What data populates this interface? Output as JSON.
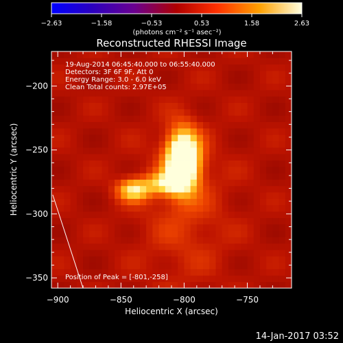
{
  "chart_data": {
    "type": "heatmap",
    "title": "Reconstructed RHESSI Image",
    "xlabel": "Heliocentric X (arcsec)",
    "ylabel": "Heliocentric Y (arcsec)",
    "xlim": [
      -905,
      -715
    ],
    "ylim": [
      -358,
      -173
    ],
    "x_ticks": [
      {
        "value": -900,
        "label": "−900"
      },
      {
        "value": -850,
        "label": "−850"
      },
      {
        "value": -800,
        "label": "−800"
      },
      {
        "value": -750,
        "label": "−750"
      }
    ],
    "y_ticks": [
      {
        "value": -200,
        "label": "−200"
      },
      {
        "value": -250,
        "label": "−250"
      },
      {
        "value": -300,
        "label": "−300"
      },
      {
        "value": -350,
        "label": "−350"
      }
    ],
    "info_lines": [
      "19-Aug-2014 06:45:40.000 to 06:55:40.000",
      "Detectors: 3F 6F 9F, Att 0",
      "Energy Range: 3.0 - 6.0 keV",
      "Clean     Total counts: 2.97E+05"
    ],
    "peak_label": "Position of Peak = [-801,-258]",
    "peak": {
      "x": -801,
      "y": -258
    },
    "sources": [
      {
        "x": -801,
        "y": -258,
        "sx": 9,
        "sy": 16,
        "amp": 2.63
      },
      {
        "x": -840,
        "y": -281,
        "sx": 9,
        "sy": 6,
        "amp": 1.3
      },
      {
        "x": -815,
        "y": -276,
        "sx": 11,
        "sy": 6,
        "amp": 1.1
      }
    ],
    "limb": [
      [
        -904,
        -285
      ],
      [
        -880,
        -358
      ]
    ],
    "colorbar": {
      "min": -2.63,
      "max": 2.63,
      "ticks": [
        "−2.63",
        "−1.58",
        "−0.53",
        "0.53",
        "1.58",
        "2.63"
      ],
      "units": "(photons cm⁻² s⁻¹ asec⁻²)",
      "colors": [
        "#0000ff",
        "#2a00aa",
        "#6a0090",
        "#b00000",
        "#ff4000",
        "#ffb000",
        "#ffffe0"
      ]
    }
  },
  "footer_date": "14-Jan-2017 03:52"
}
